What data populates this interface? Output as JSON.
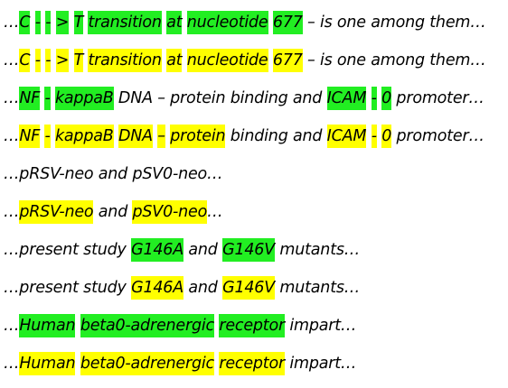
{
  "colors": {
    "green": "#22ee22",
    "yellow": "#ffff00"
  },
  "lines": [
    [
      {
        "t": "…",
        "hl": ""
      },
      {
        "t": "C",
        "hl": "green"
      },
      {
        "t": " ",
        "hl": ""
      },
      {
        "t": "-",
        "hl": "green"
      },
      {
        "t": " ",
        "hl": ""
      },
      {
        "t": "-",
        "hl": "green"
      },
      {
        "t": " ",
        "hl": ""
      },
      {
        "t": ">",
        "hl": "green"
      },
      {
        "t": " ",
        "hl": ""
      },
      {
        "t": "T",
        "hl": "green"
      },
      {
        "t": " ",
        "hl": ""
      },
      {
        "t": "transition",
        "hl": "green"
      },
      {
        "t": " ",
        "hl": ""
      },
      {
        "t": "at",
        "hl": "green"
      },
      {
        "t": " ",
        "hl": ""
      },
      {
        "t": "nucleotide",
        "hl": "green"
      },
      {
        "t": " ",
        "hl": ""
      },
      {
        "t": "677",
        "hl": "green"
      },
      {
        "t": " – is one among them…",
        "hl": ""
      }
    ],
    [
      {
        "t": "…",
        "hl": ""
      },
      {
        "t": "C",
        "hl": "yellow"
      },
      {
        "t": " ",
        "hl": ""
      },
      {
        "t": "-",
        "hl": "yellow"
      },
      {
        "t": " ",
        "hl": ""
      },
      {
        "t": "-",
        "hl": "yellow"
      },
      {
        "t": " ",
        "hl": ""
      },
      {
        "t": ">",
        "hl": "yellow"
      },
      {
        "t": " ",
        "hl": ""
      },
      {
        "t": "T",
        "hl": "yellow"
      },
      {
        "t": " ",
        "hl": ""
      },
      {
        "t": "transition",
        "hl": "yellow"
      },
      {
        "t": " ",
        "hl": ""
      },
      {
        "t": "at",
        "hl": "yellow"
      },
      {
        "t": " ",
        "hl": ""
      },
      {
        "t": "nucleotide",
        "hl": "yellow"
      },
      {
        "t": " ",
        "hl": ""
      },
      {
        "t": "677",
        "hl": "yellow"
      },
      {
        "t": " – is one among them…",
        "hl": ""
      }
    ],
    [
      {
        "t": "…",
        "hl": ""
      },
      {
        "t": "NF",
        "hl": "green"
      },
      {
        "t": " ",
        "hl": ""
      },
      {
        "t": "-",
        "hl": "green"
      },
      {
        "t": " ",
        "hl": ""
      },
      {
        "t": "kappaB",
        "hl": "green"
      },
      {
        "t": " DNA – protein binding and ",
        "hl": ""
      },
      {
        "t": "ICAM",
        "hl": "green"
      },
      {
        "t": " ",
        "hl": ""
      },
      {
        "t": "-",
        "hl": "green"
      },
      {
        "t": " ",
        "hl": ""
      },
      {
        "t": "0",
        "hl": "green"
      },
      {
        "t": " promoter…",
        "hl": ""
      }
    ],
    [
      {
        "t": "…",
        "hl": ""
      },
      {
        "t": "NF",
        "hl": "yellow"
      },
      {
        "t": " ",
        "hl": ""
      },
      {
        "t": "-",
        "hl": "yellow"
      },
      {
        "t": " ",
        "hl": ""
      },
      {
        "t": "kappaB",
        "hl": "yellow"
      },
      {
        "t": " ",
        "hl": ""
      },
      {
        "t": "DNA",
        "hl": "yellow"
      },
      {
        "t": " ",
        "hl": ""
      },
      {
        "t": "–",
        "hl": "yellow"
      },
      {
        "t": " ",
        "hl": ""
      },
      {
        "t": "protein",
        "hl": "yellow"
      },
      {
        "t": " binding and ",
        "hl": ""
      },
      {
        "t": "ICAM",
        "hl": "yellow"
      },
      {
        "t": " ",
        "hl": ""
      },
      {
        "t": "-",
        "hl": "yellow"
      },
      {
        "t": " ",
        "hl": ""
      },
      {
        "t": "0",
        "hl": "yellow"
      },
      {
        "t": " promoter…",
        "hl": ""
      }
    ],
    [
      {
        "t": "…pRSV-neo and pSV0-neo…",
        "hl": ""
      }
    ],
    [
      {
        "t": "…",
        "hl": ""
      },
      {
        "t": "pRSV-neo",
        "hl": "yellow"
      },
      {
        "t": " and ",
        "hl": ""
      },
      {
        "t": "pSV0-neo",
        "hl": "yellow"
      },
      {
        "t": "…",
        "hl": ""
      }
    ],
    [
      {
        "t": "…present study ",
        "hl": ""
      },
      {
        "t": "G146A",
        "hl": "green"
      },
      {
        "t": " and ",
        "hl": ""
      },
      {
        "t": "G146V",
        "hl": "green"
      },
      {
        "t": " mutants…",
        "hl": ""
      }
    ],
    [
      {
        "t": "…present study ",
        "hl": ""
      },
      {
        "t": "G146A",
        "hl": "yellow"
      },
      {
        "t": " and ",
        "hl": ""
      },
      {
        "t": "G146V",
        "hl": "yellow"
      },
      {
        "t": " mutants…",
        "hl": ""
      }
    ],
    [
      {
        "t": "…",
        "hl": ""
      },
      {
        "t": "Human",
        "hl": "green"
      },
      {
        "t": " ",
        "hl": ""
      },
      {
        "t": "beta0-adrenergic",
        "hl": "green"
      },
      {
        "t": " ",
        "hl": ""
      },
      {
        "t": "receptor",
        "hl": "green"
      },
      {
        "t": " impart…",
        "hl": ""
      }
    ],
    [
      {
        "t": "…",
        "hl": ""
      },
      {
        "t": "Human",
        "hl": "yellow"
      },
      {
        "t": " ",
        "hl": ""
      },
      {
        "t": "beta0-adrenergic",
        "hl": "yellow"
      },
      {
        "t": " ",
        "hl": ""
      },
      {
        "t": "receptor",
        "hl": "yellow"
      },
      {
        "t": " impart…",
        "hl": ""
      }
    ]
  ]
}
